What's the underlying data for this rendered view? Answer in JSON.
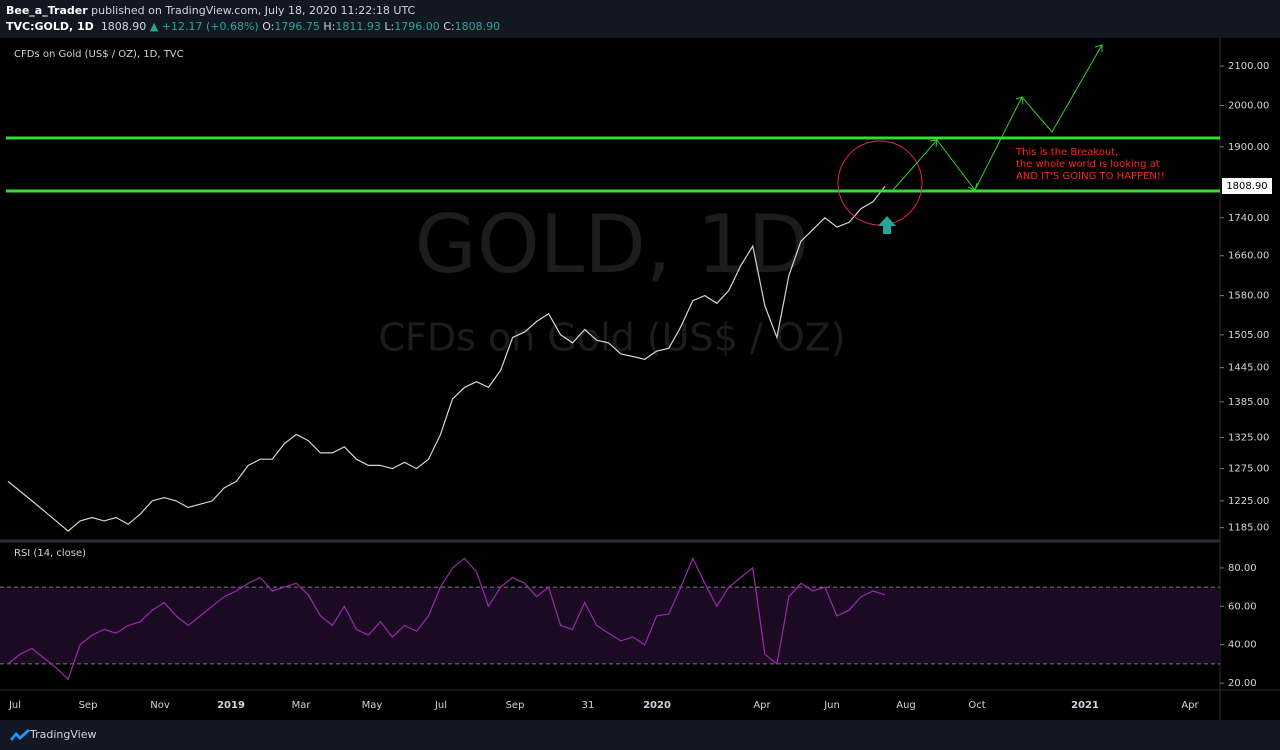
{
  "header": {
    "author": "Bee_a_Trader",
    "published": "published on TradingView.com, July 18, 2020 11:22:18 UTC",
    "symbol": "TVC:GOLD, 1D",
    "price": "1808.90",
    "change": "▲ +12.17 (+0.68%)",
    "ohlc": [
      {
        "key": "O:",
        "value": "1796.75"
      },
      {
        "key": "H:",
        "value": "1811.93"
      },
      {
        "key": "L:",
        "value": "1796.00"
      },
      {
        "key": "C:",
        "value": "1808.90"
      }
    ]
  },
  "chart_data": [
    {
      "type": "line",
      "title": "CFDs on Gold (US$ / OZ), 1D, TVC",
      "watermark": [
        "GOLD, 1D",
        "CFDs on Gold (US$ / OZ)"
      ],
      "log_scale": true,
      "ylim": [
        1167,
        2169
      ],
      "yticks": [
        {
          "value": 1185,
          "label": "1185.00"
        },
        {
          "value": 1225,
          "label": "1225.00"
        },
        {
          "value": 1275,
          "label": "1275.00"
        },
        {
          "value": 1325,
          "label": "1325.00"
        },
        {
          "value": 1385,
          "label": "1385.00"
        },
        {
          "value": 1445,
          "label": "1445.00"
        },
        {
          "value": 1505,
          "label": "1505.00"
        },
        {
          "value": 1580,
          "label": "1580.00"
        },
        {
          "value": 1660,
          "label": "1660.00"
        },
        {
          "value": 1740,
          "label": "1740.00"
        },
        {
          "value": 1900,
          "label": "1900.00"
        },
        {
          "value": 2000,
          "label": "2000.00"
        },
        {
          "value": 2100,
          "label": "2100.00"
        }
      ],
      "xticks": [
        "Jul",
        "Sep",
        "Nov",
        "2019",
        "Mar",
        "May",
        "Jul",
        "Sep",
        "31",
        "2020",
        "Apr",
        "Jun",
        "Aug",
        "Oct",
        "2021",
        "Apr"
      ],
      "last_value_label": "1808.90",
      "annotation": [
        "This is the Breakout,",
        "the whole world is looking at",
        "AND IT'S GOING TO HAPPEN!!"
      ],
      "series": [
        {
          "color": "#d1d4dc",
          "values": [
            1255,
            1240,
            1225,
            1210,
            1195,
            1180,
            1195,
            1200,
            1195,
            1200,
            1190,
            1205,
            1225,
            1230,
            1225,
            1215,
            1220,
            1225,
            1245,
            1255,
            1280,
            1290,
            1290,
            1315,
            1330,
            1320,
            1300,
            1300,
            1310,
            1290,
            1280,
            1280,
            1275,
            1285,
            1275,
            1290,
            1330,
            1390,
            1410,
            1420,
            1410,
            1440,
            1500,
            1510,
            1530,
            1545,
            1505,
            1490,
            1515,
            1495,
            1490,
            1470,
            1465,
            1460,
            1475,
            1480,
            1520,
            1570,
            1580,
            1565,
            1590,
            1640,
            1680,
            1560,
            1500,
            1620,
            1690,
            1715,
            1740,
            1720,
            1730,
            1760,
            1775,
            1808.9
          ]
        }
      ]
    },
    {
      "type": "line",
      "title": "RSI (14, close)",
      "ylim": [
        16.4,
        93
      ],
      "yticks": [
        {
          "value": 20,
          "label": "20.00"
        },
        {
          "value": 40,
          "label": "40.00"
        },
        {
          "value": 60,
          "label": "60.00"
        },
        {
          "value": 80,
          "label": "80.00"
        }
      ],
      "bands": [
        30,
        70
      ],
      "series": [
        {
          "color": "#9c27b0",
          "values": [
            30,
            35,
            38,
            33,
            28,
            22,
            40,
            45,
            48,
            46,
            50,
            52,
            58,
            62,
            55,
            50,
            55,
            60,
            65,
            68,
            72,
            75,
            68,
            70,
            72,
            66,
            55,
            50,
            60,
            48,
            45,
            52,
            44,
            50,
            47,
            55,
            70,
            80,
            85,
            78,
            60,
            70,
            75,
            72,
            65,
            70,
            50,
            48,
            62,
            50,
            46,
            42,
            44,
            40,
            55,
            56,
            70,
            85,
            72,
            60,
            70,
            75,
            80,
            35,
            30,
            65,
            72,
            68,
            70,
            55,
            58,
            65,
            68,
            66
          ]
        }
      ]
    }
  ],
  "footer": "TradingView"
}
